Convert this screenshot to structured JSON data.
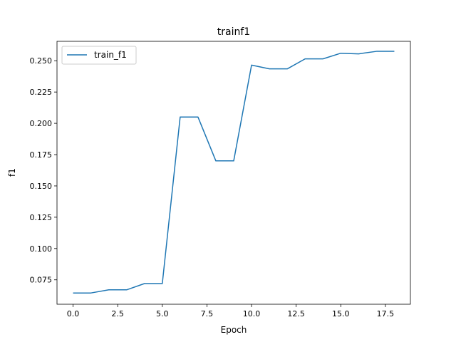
{
  "chart_data": {
    "type": "line",
    "title": "trainf1",
    "xlabel": "Epoch",
    "ylabel": "f1",
    "xlim": [
      -0.9,
      18.9
    ],
    "ylim": [
      0.0555,
      0.2655
    ],
    "xticks": [
      0.0,
      2.5,
      5.0,
      7.5,
      10.0,
      12.5,
      15.0,
      17.5
    ],
    "xtick_labels": [
      "0.0",
      "2.5",
      "5.0",
      "7.5",
      "10.0",
      "12.5",
      "15.0",
      "17.5"
    ],
    "yticks": [
      0.075,
      0.1,
      0.125,
      0.15,
      0.175,
      0.2,
      0.225,
      0.25
    ],
    "ytick_labels": [
      "0.075",
      "0.100",
      "0.125",
      "0.150",
      "0.175",
      "0.200",
      "0.225",
      "0.250"
    ],
    "grid": false,
    "legend_position": "top-left",
    "series": [
      {
        "name": "train_f1",
        "color": "#1f77b4",
        "x": [
          0,
          1,
          2,
          3,
          4,
          5,
          6,
          7,
          8,
          9,
          10,
          11,
          12,
          13,
          14,
          15,
          16,
          17,
          18
        ],
        "y": [
          0.0645,
          0.0645,
          0.067,
          0.067,
          0.072,
          0.072,
          0.205,
          0.205,
          0.17,
          0.17,
          0.2465,
          0.2435,
          0.2435,
          0.2515,
          0.2515,
          0.256,
          0.2555,
          0.2575,
          0.2575
        ]
      }
    ]
  }
}
